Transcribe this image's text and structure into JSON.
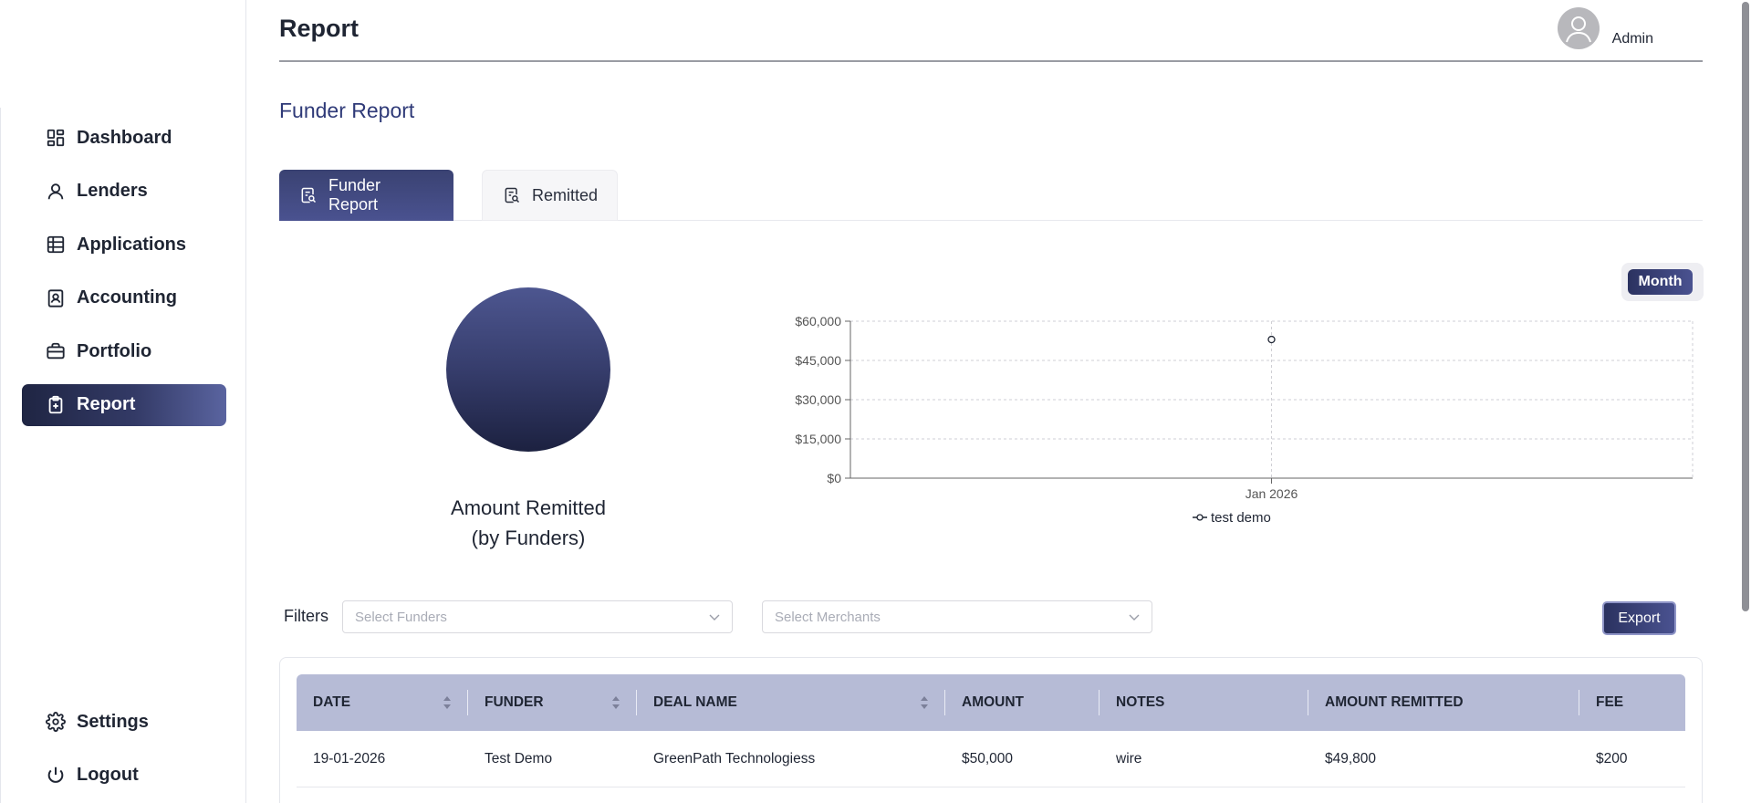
{
  "header": {
    "title": "Report",
    "user_name": "Admin"
  },
  "sidebar": {
    "items": [
      {
        "label": "Dashboard",
        "icon": "dashboard-icon"
      },
      {
        "label": "Lenders",
        "icon": "user-icon"
      },
      {
        "label": "Applications",
        "icon": "table-icon"
      },
      {
        "label": "Accounting",
        "icon": "contact-book-icon"
      },
      {
        "label": "Portfolio",
        "icon": "briefcase-icon"
      },
      {
        "label": "Report",
        "icon": "clipboard-icon",
        "active": true
      }
    ],
    "bottom": [
      {
        "label": "Settings",
        "icon": "gear-icon"
      },
      {
        "label": "Logout",
        "icon": "power-icon"
      }
    ]
  },
  "section_title": "Funder Report",
  "tabs": [
    {
      "label": "Funder Report",
      "active": true
    },
    {
      "label": "Remitted",
      "active": false
    }
  ],
  "pie": {
    "label_line1": "Amount Remitted",
    "label_line2": "(by Funders)"
  },
  "toggle": {
    "label": "Month"
  },
  "chart_data": {
    "type": "line",
    "x": [
      "Jan 2026"
    ],
    "series": [
      {
        "name": "test demo",
        "values": [
          53000
        ]
      }
    ],
    "yticks": [
      "$0",
      "$15,000",
      "$30,000",
      "$45,000",
      "$60,000"
    ],
    "ylim": [
      0,
      60000
    ],
    "grid": true,
    "legend": "bottom-center"
  },
  "filters": {
    "label": "Filters",
    "funders_placeholder": "Select Funders",
    "merchants_placeholder": "Select Merchants",
    "export_label": "Export"
  },
  "table": {
    "columns": [
      "DATE",
      "FUNDER",
      "DEAL NAME",
      "AMOUNT",
      "NOTES",
      "AMOUNT REMITTED",
      "FEE"
    ],
    "rows": [
      [
        "19-01-2026",
        "Test Demo",
        "GreenPath Technologiess",
        "$50,000",
        "wire",
        "$49,800",
        "$200"
      ]
    ]
  },
  "colors": {
    "accent": "#3a4272",
    "header_row": "#b6bbd6",
    "title_blue": "#2f3a78"
  }
}
